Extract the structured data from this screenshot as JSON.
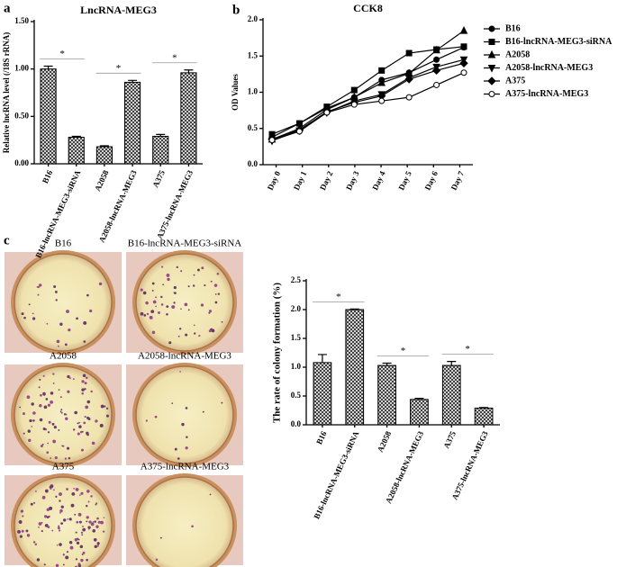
{
  "panels": [
    "a",
    "b",
    "c"
  ],
  "chart_data": [
    {
      "type": "bar",
      "title": "LncRNA-MEG3",
      "y_label": "Relative lncRNA level (/18S rRNA)",
      "categories": [
        "B16",
        "B16-lncRNA-MEG3-siRNA",
        "A2058",
        "A2058-lncRNA-MEG3",
        "A375",
        "A375-lncRNA-MEG3"
      ],
      "values": [
        1.0,
        0.28,
        0.18,
        0.86,
        0.29,
        0.96
      ],
      "errors": [
        0.03,
        0.01,
        0.01,
        0.02,
        0.02,
        0.03
      ],
      "ylim": [
        0,
        1.5
      ],
      "yticks": [
        {
          "value": 0,
          "label": "0.00"
        },
        {
          "value": 0.5,
          "label": "0.50"
        },
        {
          "value": 1,
          "label": "1.00"
        },
        {
          "value": 1.5,
          "label": "1.50"
        }
      ],
      "annotations": [
        "*",
        "*",
        "*"
      ]
    },
    {
      "type": "line",
      "title": "CCK8",
      "y_label": "OD Values",
      "categories": [
        "Day 0",
        "Day 1",
        "Day 2",
        "Day 3",
        "Day 4",
        "Day 5",
        "Day 6",
        "Day 7"
      ],
      "ylim": [
        0,
        2
      ],
      "yticks": [
        {
          "value": 0,
          "label": "0.0"
        },
        {
          "value": 0.5,
          "label": "0.5"
        },
        {
          "value": 1,
          "label": "1.0"
        },
        {
          "value": 1.5,
          "label": "1.5"
        },
        {
          "value": 2,
          "label": "2.0"
        }
      ],
      "legend": "right",
      "series": [
        {
          "name": "B16",
          "color": "#000000",
          "marker": "circle",
          "values": [
            0.38,
            0.57,
            0.78,
            0.93,
            1.17,
            1.27,
            1.45,
            1.62
          ]
        },
        {
          "name": "B16-lncRNA-MEG3-siRNA",
          "color": "#000000",
          "marker": "square",
          "values": [
            0.42,
            0.57,
            0.8,
            1.03,
            1.3,
            1.54,
            1.59,
            1.63
          ]
        },
        {
          "name": "A2058",
          "color": "#000000",
          "marker": "triangle",
          "values": [
            0.35,
            0.5,
            0.76,
            0.93,
            1.13,
            1.26,
            1.58,
            1.85
          ]
        },
        {
          "name": "A2058-lncRNA-MEG3",
          "color": "#000000",
          "marker": "triangle-down",
          "values": [
            0.33,
            0.47,
            0.72,
            0.88,
            0.97,
            1.2,
            1.35,
            1.45
          ]
        },
        {
          "name": "A375",
          "color": "#000000",
          "marker": "diamond",
          "values": [
            0.35,
            0.48,
            0.73,
            0.86,
            0.95,
            1.18,
            1.3,
            1.4
          ]
        },
        {
          "name": "A375-lncRNA-MEG3",
          "color": "#000000",
          "marker": "circle-open",
          "values": [
            0.34,
            0.46,
            0.72,
            0.83,
            0.88,
            0.93,
            1.1,
            1.27
          ]
        }
      ]
    },
    {
      "type": "bar",
      "y_label": "The rate of colony formation (%)",
      "categories": [
        "B16",
        "B16-lncRNA-MEG3-siRNA",
        "A2058",
        "A2058-lncRNA-MEG3",
        "A375",
        "A375-lncRNA-MEG3"
      ],
      "values": [
        1.08,
        2.0,
        1.03,
        0.44,
        1.03,
        0.29
      ],
      "errors": [
        0.14,
        0.01,
        0.04,
        0.02,
        0.07,
        0.01
      ],
      "ylim": [
        0,
        2.5
      ],
      "yticks": [
        {
          "value": 0,
          "label": "0.0"
        },
        {
          "value": 0.5,
          "label": "0.5"
        },
        {
          "value": 1,
          "label": "1.0"
        },
        {
          "value": 1.5,
          "label": "1.5"
        },
        {
          "value": 2,
          "label": "2.0"
        },
        {
          "value": 2.5,
          "label": "2.5"
        }
      ],
      "annotations": [
        "*",
        "*",
        "*"
      ]
    }
  ],
  "photos": {
    "labels": [
      "B16",
      "B16-lncRNA-MEG3-siRNA",
      "A2058",
      "A2058-lncRNA-MEG3",
      "A375",
      "A375-lncRNA-MEG3"
    ]
  }
}
